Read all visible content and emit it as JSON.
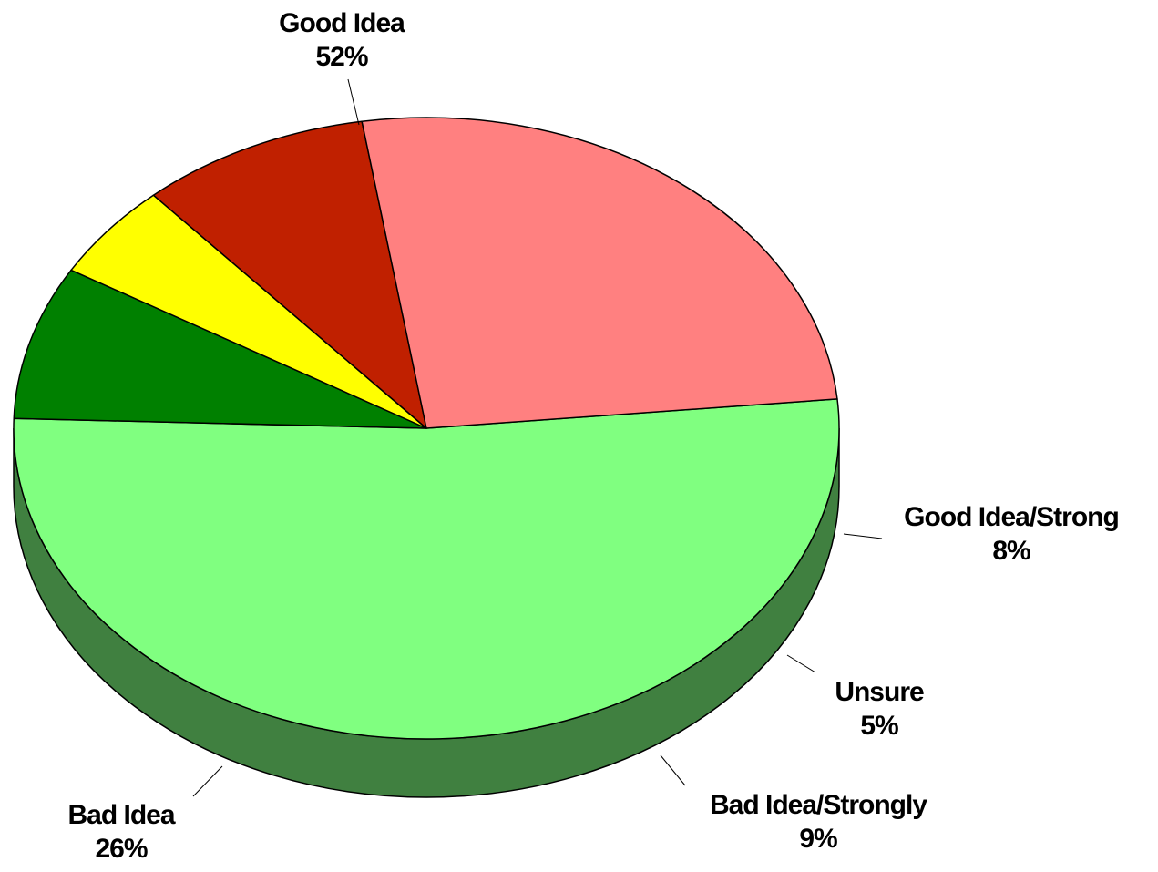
{
  "chart_data": {
    "type": "pie",
    "style": "3d-pie",
    "slices": [
      {
        "name": "Good Idea",
        "value": 52,
        "label": "52%",
        "color": "#80FF80",
        "side_color": "#408040"
      },
      {
        "name": "Good Idea/Strong",
        "value": 8,
        "label": "8%",
        "color": "#008000",
        "side_color": "#004000"
      },
      {
        "name": "Unsure",
        "value": 5,
        "label": "5%",
        "color": "#FFFF00",
        "side_color": "#808000"
      },
      {
        "name": "Bad Idea/Strongly",
        "value": 9,
        "label": "9%",
        "color": "#C02000",
        "side_color": "#601000"
      },
      {
        "name": "Bad Idea",
        "value": 26,
        "label": "26%",
        "color": "#FF8080",
        "side_color": "#804040"
      }
    ],
    "title": "",
    "legend": "none",
    "data_labels": "name and percent, outside with leader lines"
  }
}
